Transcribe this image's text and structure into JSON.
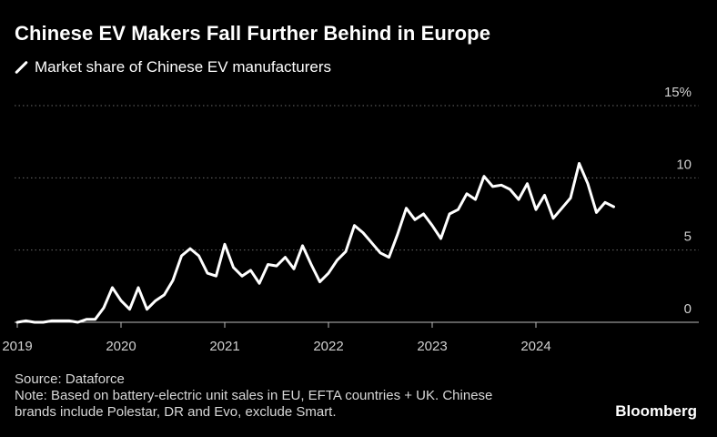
{
  "title": "Chinese EV Makers Fall Further Behind in Europe",
  "legend": {
    "label": "Market share of Chinese EV manufacturers",
    "color": "#ffffff"
  },
  "footer": {
    "source": "Source: Dataforce",
    "note_line1": "Note: Based on battery-electric unit sales in EU, EFTA countries + UK. Chinese",
    "note_line2": "brands include Polestar, DR and Evo, exclude Smart."
  },
  "brand": "Bloomberg",
  "chart_data": {
    "type": "line",
    "title": "Market share of Chinese EV manufacturers",
    "xlabel": "",
    "ylabel": "",
    "unit": "%",
    "ylim": [
      0,
      15
    ],
    "y_ticks": [
      {
        "value": 0,
        "label": "0"
      },
      {
        "value": 5,
        "label": "5"
      },
      {
        "value": 10,
        "label": "10"
      },
      {
        "value": 15,
        "label": "15%"
      }
    ],
    "x_ticks": [
      {
        "value": 2019,
        "label": "2019"
      },
      {
        "value": 2020,
        "label": "2020"
      },
      {
        "value": 2021,
        "label": "2021"
      },
      {
        "value": 2022,
        "label": "2022"
      },
      {
        "value": 2023,
        "label": "2023"
      },
      {
        "value": 2024,
        "label": "2024"
      }
    ],
    "xlim": [
      2018.85,
      2025.1
    ],
    "grid": true,
    "line_color": "#ffffff",
    "series": [
      {
        "name": "Market share of Chinese EV manufacturers",
        "x": [
          2019.0,
          2019.083,
          2019.167,
          2019.25,
          2019.333,
          2019.417,
          2019.5,
          2019.583,
          2019.667,
          2019.75,
          2019.833,
          2019.917,
          2020.0,
          2020.083,
          2020.167,
          2020.25,
          2020.333,
          2020.417,
          2020.5,
          2020.583,
          2020.667,
          2020.75,
          2020.833,
          2020.917,
          2021.0,
          2021.083,
          2021.167,
          2021.25,
          2021.333,
          2021.417,
          2021.5,
          2021.583,
          2021.667,
          2021.75,
          2021.833,
          2021.917,
          2022.0,
          2022.083,
          2022.167,
          2022.25,
          2022.333,
          2022.417,
          2022.5,
          2022.583,
          2022.667,
          2022.75,
          2022.833,
          2022.917,
          2023.0,
          2023.083,
          2023.167,
          2023.25,
          2023.333,
          2023.417,
          2023.5,
          2023.583,
          2023.667,
          2023.75,
          2023.833,
          2023.917,
          2024.0,
          2024.083,
          2024.167,
          2024.25,
          2024.333,
          2024.417,
          2024.5,
          2024.583,
          2024.667,
          2024.75
        ],
        "values": [
          0.0,
          0.1,
          0.0,
          0.0,
          0.1,
          0.1,
          0.1,
          0.0,
          0.2,
          0.2,
          1.0,
          2.4,
          1.5,
          0.9,
          2.4,
          0.9,
          1.5,
          1.9,
          2.9,
          4.6,
          5.1,
          4.6,
          3.4,
          3.2,
          5.4,
          3.8,
          3.2,
          3.6,
          2.7,
          4.0,
          3.9,
          4.5,
          3.7,
          5.3,
          4.0,
          2.8,
          3.4,
          4.3,
          4.9,
          6.7,
          6.2,
          5.5,
          4.8,
          4.5,
          6.1,
          7.9,
          7.1,
          7.5,
          6.7,
          5.8,
          7.5,
          7.8,
          8.9,
          8.5,
          10.1,
          9.4,
          9.5,
          9.2,
          8.5,
          9.6,
          7.8,
          8.8,
          7.2,
          7.9,
          8.6,
          11.0,
          9.6,
          7.6,
          8.3,
          8.0
        ]
      }
    ]
  }
}
